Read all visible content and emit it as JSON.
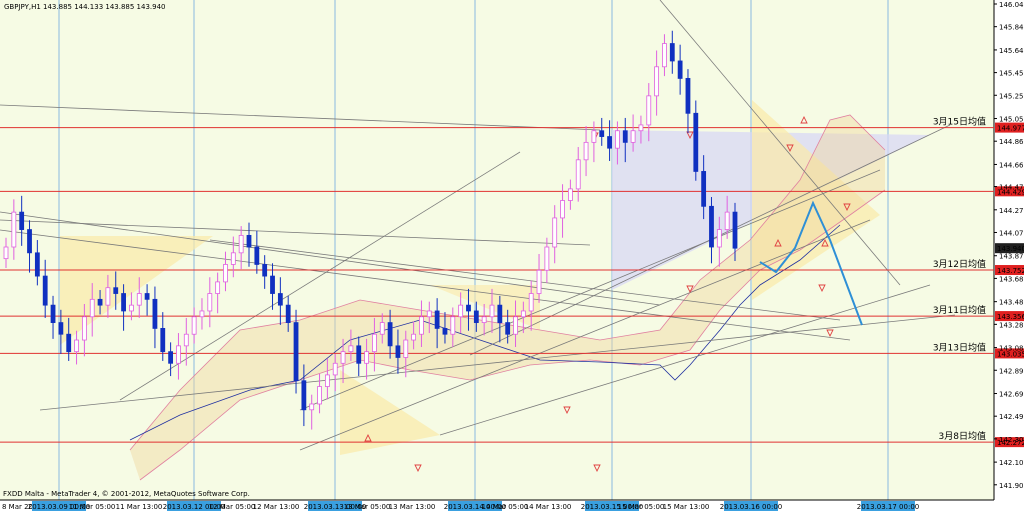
{
  "header": {
    "symbol_line": "GBPJPY,H1  143.885 144.133 143.885 143.940"
  },
  "footer": {
    "copyright": "FXDD Malta - MetaTrader 4, © 2001-2012, MetaQuotes Software Corp."
  },
  "colors": {
    "background": "#f6fbe4",
    "grid": "#8bb8e0",
    "horizontal_level": "#e03030",
    "bull_candle": "#e060e0",
    "bear_candle": "#1030c0",
    "price_label_bg": "#e02020",
    "current_price_bg": "#202020",
    "forecast": "#2e8fd6",
    "time_label_bg": "#3aa0e0"
  },
  "chart_data": {
    "type": "candlestick",
    "symbol": "GBPJPY",
    "timeframe": "H1",
    "ohlc_header": {
      "open": 143.885,
      "high": 144.133,
      "low": 143.885,
      "close": 143.94
    },
    "ylim": [
      141.8,
      146.04
    ],
    "y_ticks": [
      "146.040",
      "145.845",
      "145.645",
      "145.450",
      "145.255",
      "145.055",
      "144.860",
      "144.660",
      "144.470",
      "144.270",
      "144.075",
      "143.875",
      "143.680",
      "143.480",
      "143.285",
      "143.085",
      "142.890",
      "142.690",
      "142.495",
      "142.300",
      "142.100",
      "141.905"
    ],
    "x_ticks": [
      "8 Mar 2013",
      "2013.03.09 00:00",
      "11 Mar 05:00",
      "11 Mar 13:00",
      "2013.03.12 00:00",
      "12 Mar 05:00",
      "12 Mar 13:00",
      "2013.03.13 00:00",
      "13 Mar 05:00",
      "13 Mar 13:00",
      "2013.03.14 00:00",
      "14 Mar 05:00",
      "14 Mar 13:00",
      "2013.03.15 00:00",
      "15 Mar 05:00",
      "15 Mar 13:00",
      "2013.03.16 00:00",
      "2013.03.17 00:00"
    ],
    "levels": [
      {
        "label": "3月15日均值",
        "price": "144.977",
        "value": 144.977
      },
      {
        "label": "",
        "price": "144.429",
        "value": 144.429
      },
      {
        "label": "3月12日均值",
        "price": "143.752",
        "value": 143.752
      },
      {
        "label": "3月11日均值",
        "price": "143.356",
        "value": 143.356
      },
      {
        "label": "3月13日均值",
        "price": "143.035",
        "value": 143.035
      },
      {
        "label": "3月8日均值",
        "price": "142.272",
        "value": 142.272
      }
    ],
    "current_price": "143.940",
    "close_series": [
      143.95,
      144.25,
      144.1,
      143.9,
      143.7,
      143.45,
      143.3,
      143.2,
      143.05,
      143.15,
      143.35,
      143.5,
      143.45,
      143.6,
      143.55,
      143.4,
      143.45,
      143.55,
      143.5,
      143.25,
      143.05,
      142.95,
      143.1,
      143.2,
      143.35,
      143.4,
      143.55,
      143.65,
      143.8,
      143.9,
      144.05,
      143.95,
      143.8,
      143.7,
      143.55,
      143.45,
      143.3,
      142.8,
      142.55,
      142.6,
      142.75,
      142.85,
      142.95,
      143.05,
      143.1,
      142.95,
      143.05,
      143.2,
      143.3,
      143.1,
      143.0,
      143.15,
      143.2,
      143.35,
      143.4,
      143.25,
      143.2,
      143.35,
      143.45,
      143.4,
      143.3,
      143.35,
      143.45,
      143.3,
      143.2,
      143.35,
      143.4,
      143.55,
      143.75,
      143.95,
      144.2,
      144.35,
      144.45,
      144.7,
      144.85,
      144.95,
      144.9,
      144.8,
      144.95,
      144.85,
      144.95,
      145.0,
      145.25,
      145.5,
      145.7,
      145.55,
      145.4,
      145.1,
      144.6,
      144.3,
      143.95,
      144.1,
      144.25,
      143.94
    ]
  }
}
